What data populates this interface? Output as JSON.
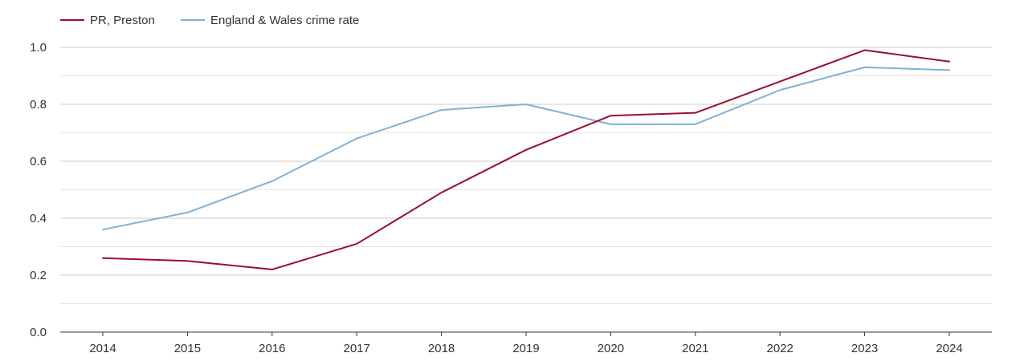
{
  "chart_data": {
    "type": "line",
    "title": "",
    "xlabel": "",
    "ylabel": "",
    "x": [
      "2014",
      "2015",
      "2016",
      "2017",
      "2018",
      "2019",
      "2020",
      "2021",
      "2022",
      "2023",
      "2024"
    ],
    "ylim": [
      0,
      1.0
    ],
    "yticks": [
      "0.0",
      "0.2",
      "0.4",
      "0.6",
      "0.8",
      "1.0"
    ],
    "grid": true,
    "legend_position": "top-left",
    "series": [
      {
        "name": "PR, Preston",
        "color": "#9b0e30",
        "values": [
          0.26,
          0.25,
          0.22,
          0.31,
          0.49,
          0.64,
          0.76,
          0.77,
          0.88,
          0.99,
          0.95
        ]
      },
      {
        "name": "England & Wales crime rate",
        "color": "#7fb2d5",
        "values": [
          0.36,
          0.42,
          0.53,
          0.68,
          0.78,
          0.8,
          0.73,
          0.73,
          0.85,
          0.93,
          0.92
        ]
      }
    ]
  }
}
